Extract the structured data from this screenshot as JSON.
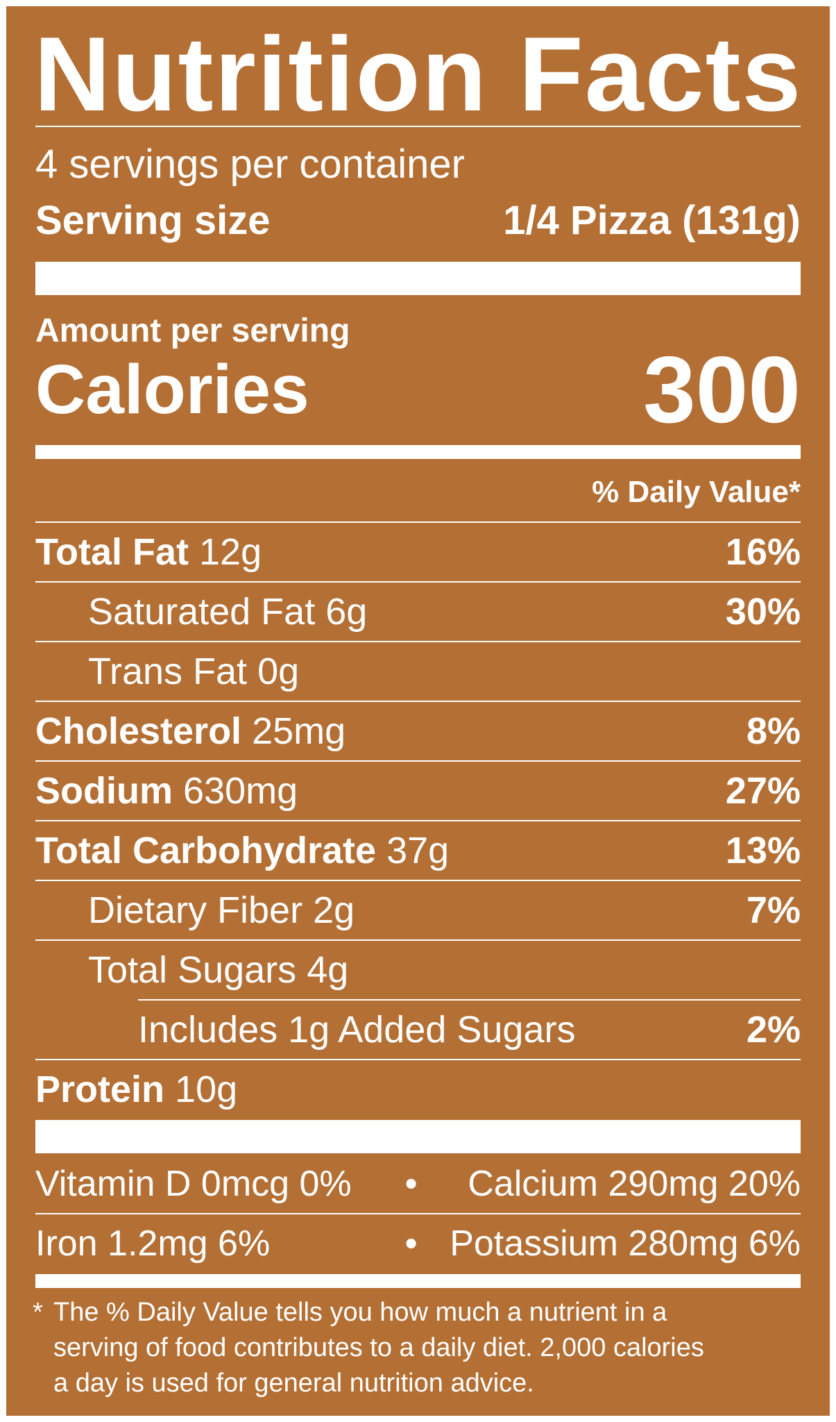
{
  "title": "Nutrition Facts",
  "servings_per_container": "4 servings per container",
  "serving_size": {
    "label": "Serving size",
    "value": "1/4 Pizza (131g)"
  },
  "amount_per_serving": "Amount per serving",
  "calories": {
    "label": "Calories",
    "value": "300"
  },
  "daily_value_header": "% Daily Value*",
  "nutrients": [
    {
      "name": "Total Fat",
      "amount": "12g",
      "dv": "16%"
    },
    {
      "name": "Saturated Fat",
      "amount": "6g",
      "dv": "30%"
    },
    {
      "name": "Trans Fat",
      "amount": "0g",
      "dv": ""
    },
    {
      "name": "Cholesterol",
      "amount": "25mg",
      "dv": "8%"
    },
    {
      "name": "Sodium",
      "amount": "630mg",
      "dv": "27%"
    },
    {
      "name": "Total Carbohydrate",
      "amount": "37g",
      "dv": "13%"
    },
    {
      "name": "Dietary Fiber",
      "amount": "2g",
      "dv": "7%"
    },
    {
      "name": "Total Sugars",
      "amount": "4g",
      "dv": ""
    },
    {
      "name": "Includes 1g Added Sugars",
      "amount": "",
      "dv": "2%"
    },
    {
      "name": "Protein",
      "amount": "10g",
      "dv": ""
    }
  ],
  "vitamins": [
    {
      "left": "Vitamin D 0mcg 0%",
      "right": "Calcium 290mg 20%"
    },
    {
      "left": "Iron 1.2mg 6%",
      "right": "Potassium 280mg 6%"
    }
  ],
  "bullet": "•",
  "footnote": {
    "star": "*",
    "lines": [
      "The % Daily Value tells you how much a nutrient in a",
      "serving of food contributes to a daily diet. 2,000 calories",
      "a day is used for general nutrition advice."
    ]
  },
  "colors": {
    "background": "#b46f34",
    "foreground": "#ffffff"
  }
}
